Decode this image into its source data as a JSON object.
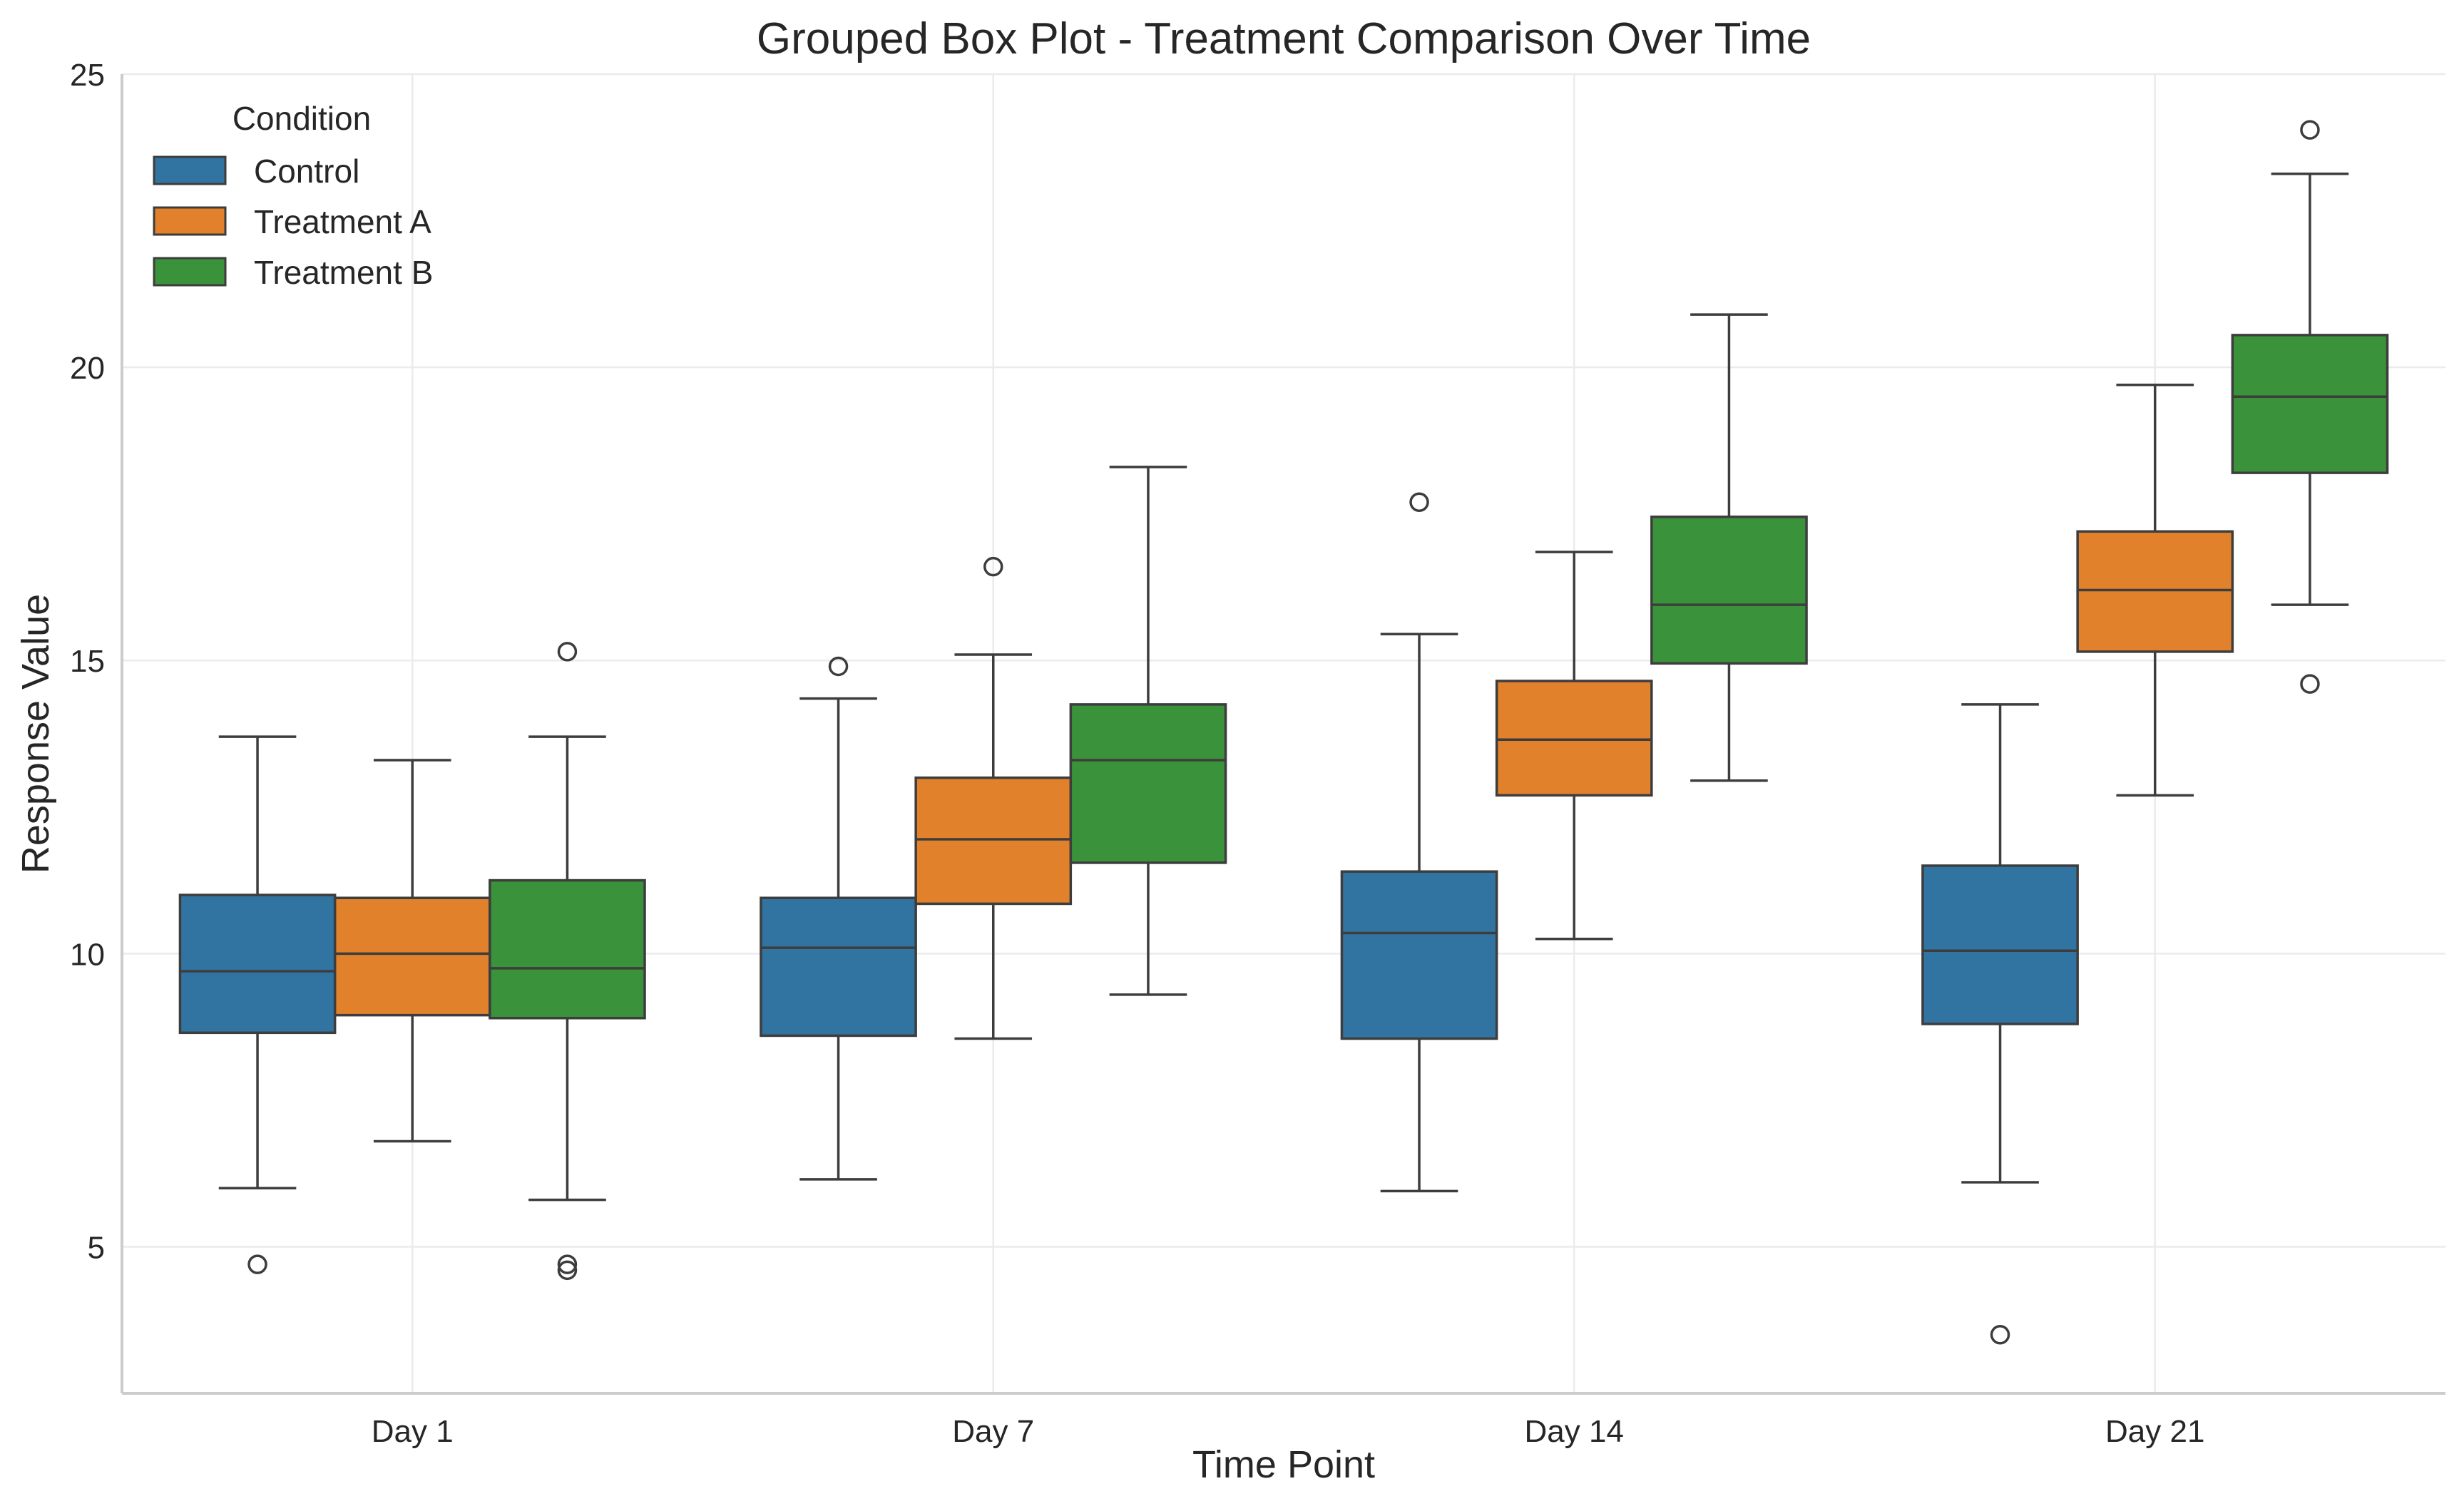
{
  "chart_data": {
    "type": "boxplot",
    "title": "Grouped Box Plot - Treatment Comparison Over Time",
    "xlabel": "Time Point",
    "ylabel": "Response Value",
    "ylim": [
      2.5,
      25
    ],
    "yticks": [
      5,
      10,
      15,
      20,
      25
    ],
    "grid": true,
    "legend": {
      "title": "Condition",
      "placement": "top-left"
    },
    "categories": [
      "Day 1",
      "Day 7",
      "Day 14",
      "Day 21"
    ],
    "series": [
      {
        "name": "Control",
        "color": "#3274a1",
        "boxes": [
          {
            "whislo": 6.0,
            "q1": 8.65,
            "med": 9.7,
            "q3": 11.0,
            "whishi": 13.7,
            "fliers": [
              4.7
            ]
          },
          {
            "whislo": 6.15,
            "q1": 8.6,
            "med": 10.1,
            "q3": 10.95,
            "whishi": 14.35,
            "fliers": [
              14.9
            ]
          },
          {
            "whislo": 5.95,
            "q1": 8.55,
            "med": 10.35,
            "q3": 11.4,
            "whishi": 15.45,
            "fliers": [
              17.7
            ]
          },
          {
            "whislo": 6.1,
            "q1": 8.8,
            "med": 10.05,
            "q3": 11.5,
            "whishi": 14.25,
            "fliers": [
              3.5
            ]
          }
        ]
      },
      {
        "name": "Treatment A",
        "color": "#e1812c",
        "boxes": [
          {
            "whislo": 6.8,
            "q1": 8.95,
            "med": 10.0,
            "q3": 10.95,
            "whishi": 13.3,
            "fliers": []
          },
          {
            "whislo": 8.55,
            "q1": 10.85,
            "med": 11.95,
            "q3": 13.0,
            "whishi": 15.1,
            "fliers": [
              16.6
            ]
          },
          {
            "whislo": 10.25,
            "q1": 12.7,
            "med": 13.65,
            "q3": 14.65,
            "whishi": 16.85,
            "fliers": []
          },
          {
            "whislo": 12.7,
            "q1": 15.15,
            "med": 16.2,
            "q3": 17.2,
            "whishi": 19.7,
            "fliers": []
          }
        ]
      },
      {
        "name": "Treatment B",
        "color": "#3a923a",
        "boxes": [
          {
            "whislo": 5.8,
            "q1": 8.9,
            "med": 9.75,
            "q3": 11.25,
            "whishi": 13.7,
            "fliers": [
              4.6,
              4.7,
              15.15
            ]
          },
          {
            "whislo": 9.3,
            "q1": 11.55,
            "med": 13.3,
            "q3": 14.25,
            "whishi": 18.3,
            "fliers": []
          },
          {
            "whislo": 12.95,
            "q1": 14.95,
            "med": 15.95,
            "q3": 17.45,
            "whishi": 20.9,
            "fliers": []
          },
          {
            "whislo": 15.95,
            "q1": 18.2,
            "med": 19.5,
            "q3": 20.55,
            "whishi": 23.3,
            "fliers": [
              14.6,
              24.05
            ]
          }
        ]
      }
    ]
  }
}
